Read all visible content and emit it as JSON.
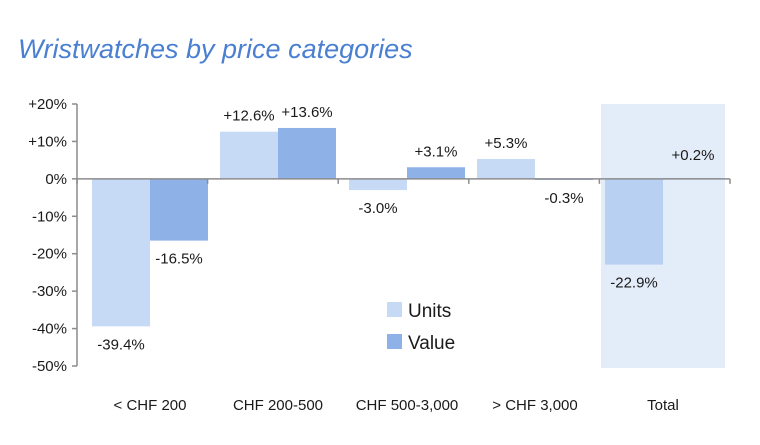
{
  "chart_data": {
    "type": "bar",
    "title": "Wristwatches by price categories",
    "categories": [
      "< CHF 200",
      "CHF 200-500",
      "CHF 500-3,000",
      "> CHF 3,000",
      "Total"
    ],
    "series": [
      {
        "name": "Units",
        "values": [
          -39.4,
          12.6,
          -3.0,
          5.3,
          -22.9
        ],
        "labels": [
          "-39.4%",
          "+12.6%",
          "-3.0%",
          "+5.3%",
          "-22.9%"
        ],
        "color": "#c6d9f5"
      },
      {
        "name": "Value",
        "values": [
          -16.5,
          13.6,
          3.1,
          -0.3,
          0.2
        ],
        "labels": [
          "-16.5%",
          "+13.6%",
          "+3.1%",
          "-0.3%",
          "+0.2%"
        ],
        "color": "#8eb2e8"
      }
    ],
    "y_ticks": [
      "+20%",
      "+10%",
      "0%",
      "-10%",
      "-20%",
      "-30%",
      "-40%",
      "-50%"
    ],
    "ylim": [
      -50,
      20
    ],
    "highlight_category": "Total",
    "highlight_color": "#e3ecf9",
    "total_units_color": "#b8d0f2",
    "legend_position": "center-lower",
    "grid": false
  }
}
